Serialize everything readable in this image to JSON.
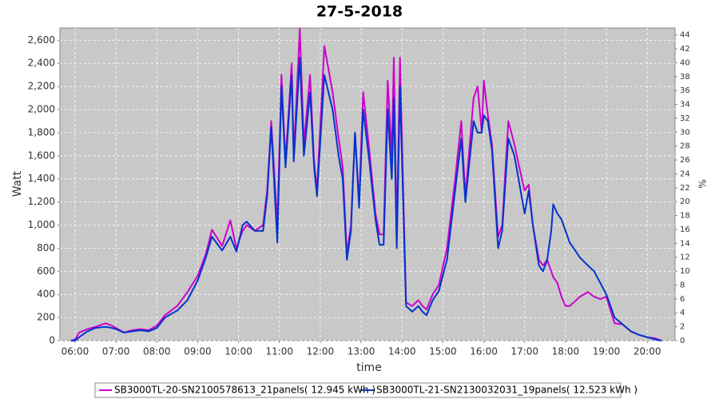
{
  "chart_data": {
    "type": "line",
    "title": "27-5-2018",
    "xlabel": "time",
    "ylabel": "Watt",
    "y2label": "%",
    "x": [
      5.9,
      6.0,
      6.1,
      6.3,
      6.5,
      6.75,
      6.9,
      7.0,
      7.2,
      7.4,
      7.6,
      7.8,
      8.0,
      8.2,
      8.5,
      8.75,
      9.0,
      9.2,
      9.35,
      9.6,
      9.8,
      9.95,
      10.1,
      10.2,
      10.4,
      10.6,
      10.7,
      10.8,
      10.95,
      11.05,
      11.15,
      11.3,
      11.35,
      11.5,
      11.6,
      11.75,
      11.85,
      11.92,
      12.1,
      12.3,
      12.45,
      12.55,
      12.65,
      12.75,
      12.85,
      12.95,
      13.05,
      13.2,
      13.35,
      13.45,
      13.55,
      13.65,
      13.75,
      13.8,
      13.87,
      13.95,
      14.05,
      14.1,
      14.25,
      14.4,
      14.5,
      14.6,
      14.75,
      14.9,
      15.1,
      15.3,
      15.45,
      15.55,
      15.75,
      15.85,
      15.95,
      16.0,
      16.1,
      16.2,
      16.35,
      16.45,
      16.6,
      16.75,
      16.9,
      17.0,
      17.1,
      17.2,
      17.35,
      17.45,
      17.55,
      17.65,
      17.7,
      17.8,
      17.9,
      18.0,
      18.1,
      18.2,
      18.35,
      18.55,
      18.7,
      18.85,
      19.0,
      19.2,
      19.4,
      19.6,
      19.8,
      20.0,
      20.2,
      20.35
    ],
    "series": [
      {
        "name": "SB3000TL-20-SN2100578613_21panels( 12.945 kWh )",
        "color": "#cc00cc",
        "values": [
          0,
          10,
          70,
          100,
          120,
          150,
          130,
          110,
          70,
          90,
          100,
          90,
          130,
          220,
          300,
          420,
          560,
          750,
          960,
          820,
          1040,
          800,
          950,
          1000,
          950,
          1000,
          1300,
          1900,
          1000,
          2300,
          1550,
          2400,
          1600,
          2700,
          1700,
          2300,
          1550,
          1300,
          2550,
          2150,
          1750,
          1500,
          750,
          1000,
          1800,
          1200,
          2150,
          1650,
          1100,
          920,
          920,
          2250,
          1600,
          2450,
          900,
          2450,
          1000,
          330,
          300,
          350,
          300,
          270,
          400,
          480,
          800,
          1400,
          1900,
          1250,
          2100,
          2200,
          1800,
          2250,
          1950,
          1700,
          900,
          1000,
          1900,
          1700,
          1450,
          1300,
          1350,
          1000,
          700,
          650,
          700,
          600,
          550,
          500,
          380,
          300,
          300,
          330,
          380,
          420,
          380,
          360,
          380,
          150,
          140,
          80,
          50,
          30,
          20,
          0
        ]
      },
      {
        "name": "SB3000TL-21-SN2130032031_19panels( 12.523 kWh )",
        "color": "#0033cc",
        "values": [
          0,
          0,
          30,
          80,
          110,
          120,
          110,
          100,
          70,
          80,
          90,
          80,
          110,
          200,
          260,
          350,
          520,
          720,
          900,
          780,
          900,
          770,
          1000,
          1030,
          950,
          950,
          1250,
          1850,
          850,
          2200,
          1500,
          2300,
          1550,
          2450,
          1600,
          2150,
          1500,
          1250,
          2300,
          2000,
          1600,
          1400,
          700,
          950,
          1800,
          1150,
          2000,
          1550,
          1050,
          830,
          830,
          2000,
          1400,
          2100,
          800,
          2200,
          900,
          300,
          250,
          300,
          250,
          220,
          350,
          430,
          700,
          1300,
          1750,
          1200,
          1900,
          1800,
          1800,
          1950,
          1900,
          1650,
          800,
          950,
          1750,
          1600,
          1300,
          1100,
          1300,
          1000,
          650,
          600,
          700,
          950,
          1180,
          1100,
          1050,
          950,
          850,
          800,
          720,
          650,
          600,
          500,
          400,
          200,
          140,
          80,
          50,
          30,
          10,
          0
        ]
      }
    ],
    "xlim": [
      5.63,
      20.68
    ],
    "xticks": [
      {
        "value": 6,
        "label": "06:00"
      },
      {
        "value": 7,
        "label": "07:00"
      },
      {
        "value": 8,
        "label": "08:00"
      },
      {
        "value": 9,
        "label": "09:00"
      },
      {
        "value": 10,
        "label": "10:00"
      },
      {
        "value": 11,
        "label": "11:00"
      },
      {
        "value": 12,
        "label": "12:00"
      },
      {
        "value": 13,
        "label": "13:00"
      },
      {
        "value": 14,
        "label": "14:00"
      },
      {
        "value": 15,
        "label": "15:00"
      },
      {
        "value": 16,
        "label": "16:00"
      },
      {
        "value": 17,
        "label": "17:00"
      },
      {
        "value": 18,
        "label": "18:00"
      },
      {
        "value": 19,
        "label": "19:00"
      },
      {
        "value": 20,
        "label": "20:00"
      }
    ],
    "ylim": [
      0,
      2706
    ],
    "yticks": [
      0,
      200,
      400,
      600,
      800,
      {
        "value": 1000,
        "label": "1,000"
      },
      {
        "value": 1200,
        "label": "1,200"
      },
      {
        "value": 1400,
        "label": "1,400"
      },
      {
        "value": 1600,
        "label": "1,600"
      },
      {
        "value": 1800,
        "label": "1,800"
      },
      {
        "value": 2000,
        "label": "2,000"
      },
      {
        "value": 2200,
        "label": "2,200"
      },
      {
        "value": 2400,
        "label": "2,400"
      },
      {
        "value": 2600,
        "label": "2,600"
      }
    ],
    "y2lim": [
      0,
      45
    ],
    "y2ticks": [
      0,
      2,
      4,
      6,
      8,
      10,
      12,
      14,
      16,
      18,
      20,
      22,
      24,
      26,
      28,
      30,
      32,
      34,
      36,
      38,
      40,
      42,
      44
    ],
    "grid": true,
    "legend": "bottom"
  }
}
